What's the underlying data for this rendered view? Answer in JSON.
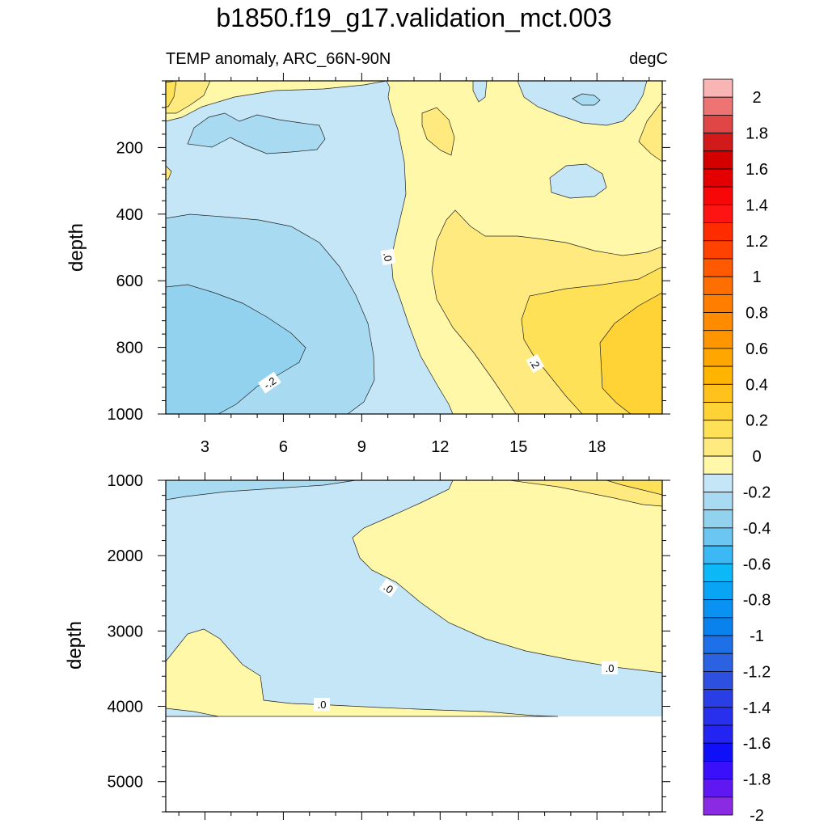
{
  "title": "b1850.f19_g17.validation_mct.003",
  "subtitle_left": "TEMP anomaly, ARC_66N-90N",
  "units": "degC",
  "chart_data": {
    "type": "contour",
    "variable": "TEMP anomaly",
    "region": "ARC_66N-90N",
    "units": "degC",
    "x_ticks": [
      3,
      6,
      9,
      12,
      15,
      18
    ],
    "x_tick_labels": [
      "3",
      "6",
      "9",
      "12",
      "15",
      "18"
    ],
    "xlim": [
      1.5,
      20.5
    ],
    "panels": [
      {
        "name": "upper",
        "ylabel": "depth",
        "ylim": [
          1000,
          0
        ],
        "y_ticks": [
          200,
          400,
          600,
          800,
          1000
        ],
        "y_tick_labels": [
          "200",
          "400",
          "600",
          "800",
          "1000"
        ],
        "contour_labels": [
          ".0",
          ".2",
          "-.2"
        ]
      },
      {
        "name": "lower",
        "ylabel": "depth",
        "ylim": [
          5400,
          1000
        ],
        "y_ticks": [
          1000,
          2000,
          3000,
          4000,
          5000
        ],
        "y_tick_labels": [
          "1000",
          "2000",
          "3000",
          "4000",
          "5000"
        ],
        "contour_labels": [
          ".0",
          ".0",
          ".0"
        ],
        "ocean_floor_depth": 4120
      }
    ],
    "colorbar": {
      "levels": [
        -2,
        -1.9,
        -1.8,
        -1.7,
        -1.6,
        -1.5,
        -1.4,
        -1.3,
        -1.2,
        -1.1,
        -1,
        -0.9,
        -0.8,
        -0.7,
        -0.6,
        -0.5,
        -0.4,
        -0.3,
        -0.2,
        -0.1,
        0,
        0.1,
        0.2,
        0.3,
        0.4,
        0.5,
        0.6,
        0.7,
        0.8,
        0.9,
        1,
        1.1,
        1.2,
        1.3,
        1.4,
        1.5,
        1.6,
        1.7,
        1.8,
        1.9,
        2
      ],
      "labels": [
        "2",
        "1.8",
        "1.6",
        "1.4",
        "1.2",
        "1",
        "0.8",
        "0.6",
        "0.4",
        "0.2",
        "0",
        "-0.2",
        "-0.4",
        "-0.6",
        "-0.8",
        "-1",
        "-1.2",
        "-1.4",
        "-1.6",
        "-1.8",
        "-2"
      ],
      "colors_top_to_bottom": [
        "#F9B4B4",
        "#EE7474",
        "#E04646",
        "#D21A1A",
        "#D40000",
        "#E40000",
        "#F70707",
        "#FF1414",
        "#FF2C00",
        "#FF4200",
        "#FF5A00",
        "#FF6E00",
        "#FF7E00",
        "#FF8C00",
        "#FF9600",
        "#FFA600",
        "#FFB400",
        "#FFC21C",
        "#FFD236",
        "#FFE158",
        "#FFEA80",
        "#FFF8A8",
        "#C4E6F6",
        "#A8DAF1",
        "#92D2EE",
        "#6CC6F2",
        "#3CB8F4",
        "#0CB8F6",
        "#0AA4F4",
        "#0A92F2",
        "#0A82EE",
        "#1E70E8",
        "#2A62E2",
        "#2E50E0",
        "#2A3EE6",
        "#2830EE",
        "#2424F2",
        "#1010F8",
        "#3A10FA",
        "#6018F2",
        "#8A2AE2"
      ]
    }
  }
}
